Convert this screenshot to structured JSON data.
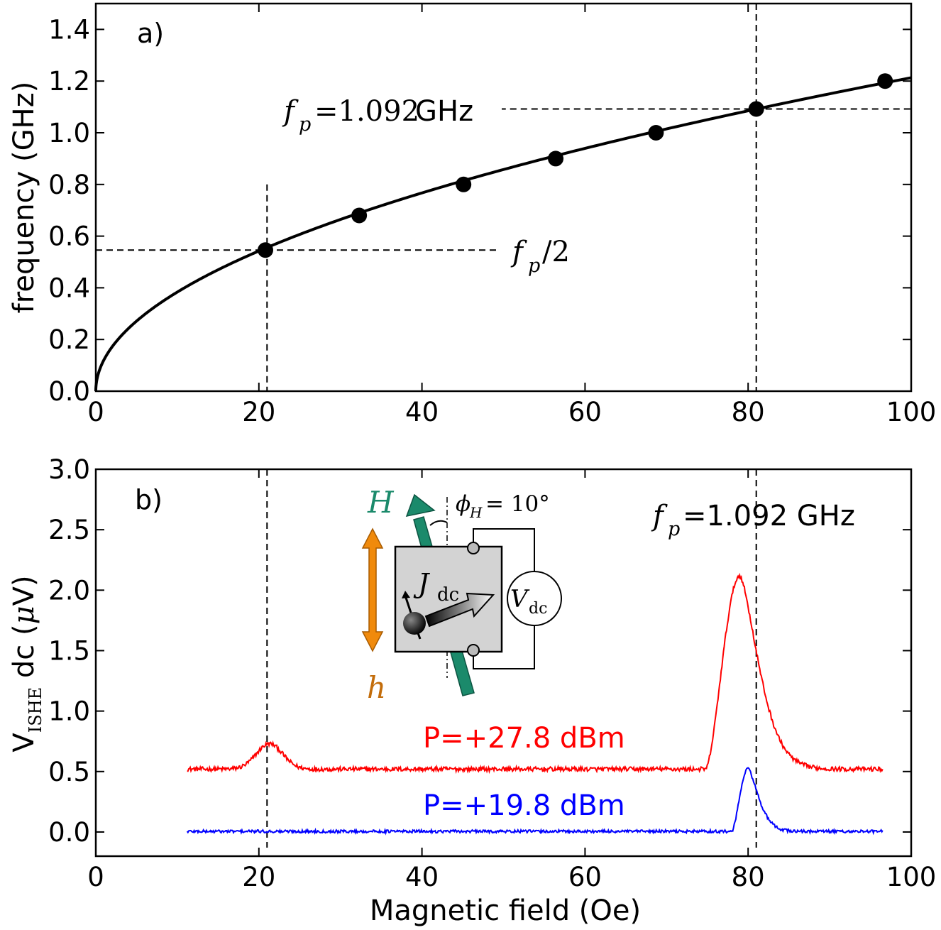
{
  "chart_data": [
    {
      "panel": "a)",
      "type": "scatter",
      "xlabel": "",
      "ylabel": "frequency (GHz)",
      "xlim": [
        0,
        100
      ],
      "ylim": [
        0,
        1.5
      ],
      "xticks": [
        0,
        20,
        40,
        60,
        80,
        100
      ],
      "yticks": [
        0.0,
        0.2,
        0.4,
        0.6,
        0.8,
        1.0,
        1.2,
        1.4
      ],
      "xtick_labels": [
        "0",
        "20",
        "40",
        "60",
        "80",
        "100"
      ],
      "ytick_labels": [
        "0.0",
        "0.2",
        "0.4",
        "0.6",
        "0.8",
        "1.0",
        "1.2",
        "1.4"
      ],
      "points": {
        "x": [
          20.8,
          32.3,
          45.1,
          56.4,
          68.7,
          81.0,
          96.8
        ],
        "y": [
          0.546,
          0.68,
          0.8,
          0.9,
          1.0,
          1.092,
          1.2
        ]
      },
      "fit_curve": {
        "form": "f = a*sqrt(H)",
        "a": 0.1213,
        "x_range": [
          0,
          100
        ]
      },
      "guides": {
        "vertical_x": [
          21.0,
          81.0
        ],
        "vertical_top_a": 0.8,
        "horizontal": [
          {
            "y": 1.092,
            "from_x": 49.5,
            "to_x": 100
          },
          {
            "y": 0.546,
            "from_x": 0,
            "to_x": 49.5
          }
        ]
      },
      "annotations": [
        {
          "symbol": "f",
          "sub": "p",
          "text": "=1.092",
          "unit": " GHz"
        },
        {
          "symbol": "f",
          "sub": "p",
          "text": "/2"
        }
      ]
    },
    {
      "panel": "b)",
      "type": "line",
      "xlabel": "Magnetic field (Oe)",
      "ylabel_main": "V",
      "ylabel_sub": "ISHE",
      "ylabel_rest": " dc (",
      "ylabel_unit_mu": "μ",
      "ylabel_unit_end": "V)",
      "xlim": [
        0,
        100
      ],
      "ylim": [
        -0.2,
        3.0
      ],
      "xticks": [
        0,
        20,
        40,
        60,
        80,
        100
      ],
      "yticks": [
        0.0,
        0.5,
        1.0,
        1.5,
        2.0,
        2.5,
        3.0
      ],
      "xtick_labels": [
        "0",
        "20",
        "40",
        "60",
        "80",
        "100"
      ],
      "ytick_labels": [
        "0.0",
        "0.5",
        "1.0",
        "1.5",
        "2.0",
        "2.5",
        "3.0"
      ],
      "x_range": [
        11.2,
        96.5
      ],
      "guides": {
        "vertical_x": [
          21.0,
          81.0
        ]
      },
      "series": [
        {
          "name": "P=+27.8 dBm",
          "color": "#ff0000",
          "baseline": 0.52,
          "noise": 0.018,
          "peaks": [
            {
              "center": 21.3,
              "height": 0.21,
              "width": 1.6
            },
            {
              "center": 79.0,
              "height": 1.6,
              "width": 1.5,
              "onset": 74.8,
              "tail": 3.2
            }
          ],
          "legend": "P=+27.8 dBm"
        },
        {
          "name": "P=+19.8 dBm",
          "color": "#0000ff",
          "baseline": 0.005,
          "noise": 0.012,
          "peaks": [
            {
              "center": 80.0,
              "height": 0.52,
              "width": 0.8,
              "onset": 78.0,
              "tail": 1.8
            }
          ],
          "legend": "P=+19.8 dBm"
        }
      ],
      "annotation_fp": {
        "symbol": "f",
        "sub": "p",
        "text": " =1.092 GHz"
      },
      "inset": {
        "field_label": "H",
        "field_color": "#1b8a6b",
        "rf_label": "h",
        "rf_color": "#f08a0c",
        "angle_label": "ϕ",
        "angle_sub": "H",
        "angle_value": " = 10°",
        "current_label": "J",
        "current_sub": "dc",
        "voltmeter_label": "V",
        "voltmeter_sub": "dc"
      }
    }
  ]
}
